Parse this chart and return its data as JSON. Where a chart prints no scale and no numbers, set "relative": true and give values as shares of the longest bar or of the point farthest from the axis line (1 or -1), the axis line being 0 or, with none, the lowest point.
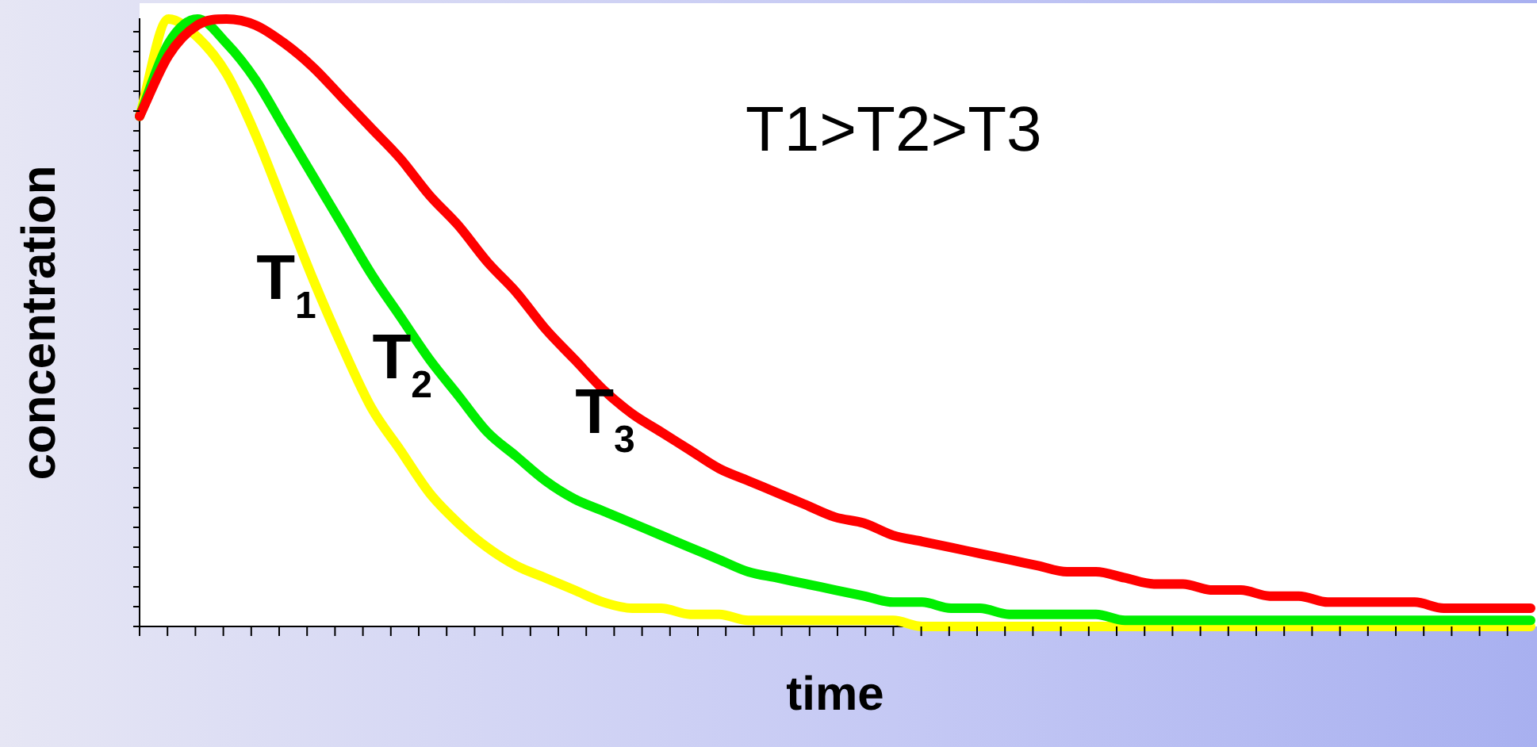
{
  "chart_data": {
    "type": "line",
    "relative": true,
    "xlabel": "time",
    "ylabel": "concentration",
    "annotations": [
      "T1>T2>T3"
    ],
    "tick_labels": false,
    "grid": false,
    "legend": false,
    "marker": "none",
    "line_style": "solid",
    "categories": [
      null,
      null,
      null,
      null,
      null,
      null,
      null,
      null,
      null,
      null,
      null,
      null,
      null,
      null,
      null,
      null,
      null,
      null,
      null,
      null,
      null,
      null,
      null,
      null,
      null,
      null,
      null,
      null,
      null,
      null,
      null,
      null,
      null,
      null,
      null,
      null,
      null,
      null,
      null,
      null,
      null,
      null,
      null,
      null,
      null,
      null,
      null,
      null,
      null
    ],
    "series": [
      {
        "name": "T$_{1}$",
        "color": "#ffff00",
        "values": [
          0.84,
          1,
          0.97,
          0.91,
          0.81,
          0.69,
          0.57,
          0.46,
          0.36,
          0.29,
          0.22,
          0.17,
          0.13,
          0.1,
          0.08,
          0.06,
          0.04,
          0.03,
          0.03,
          0.02,
          0.02,
          0.01,
          0.01,
          0.01,
          0.01,
          0.01,
          0.01,
          0,
          0,
          0,
          0,
          0,
          0,
          0,
          0,
          0,
          0,
          0,
          0,
          0,
          0,
          0,
          0,
          0,
          0,
          0,
          0,
          0,
          0
        ]
      },
      {
        "name": "T$_{2}$",
        "color": "#00ee00",
        "values": [
          0.84,
          0.96,
          1,
          0.96,
          0.9,
          0.82,
          0.74,
          0.66,
          0.58,
          0.51,
          0.44,
          0.38,
          0.32,
          0.28,
          0.24,
          0.21,
          0.19,
          0.17,
          0.15,
          0.13,
          0.11,
          0.09,
          0.08,
          0.07,
          0.06,
          0.05,
          0.04,
          0.04,
          0.03,
          0.03,
          0.02,
          0.02,
          0.02,
          0.02,
          0.01,
          0.01,
          0.01,
          0.01,
          0.01,
          0.01,
          0.01,
          0.01,
          0.01,
          0.01,
          0.01,
          0.01,
          0.01,
          0.01,
          0.01
        ]
      },
      {
        "name": "T$_{3}$",
        "color": "#ff0000",
        "values": [
          0.84,
          0.94,
          0.99,
          1,
          0.99,
          0.96,
          0.92,
          0.87,
          0.82,
          0.77,
          0.71,
          0.66,
          0.6,
          0.55,
          0.49,
          0.44,
          0.39,
          0.35,
          0.32,
          0.29,
          0.26,
          0.24,
          0.22,
          0.2,
          0.18,
          0.17,
          0.15,
          0.14,
          0.13,
          0.12,
          0.11,
          0.1,
          0.09,
          0.09,
          0.08,
          0.07,
          0.07,
          0.06,
          0.06,
          0.05,
          0.05,
          0.04,
          0.04,
          0.04,
          0.04,
          0.03,
          0.03,
          0.03,
          0.03
        ]
      }
    ]
  }
}
